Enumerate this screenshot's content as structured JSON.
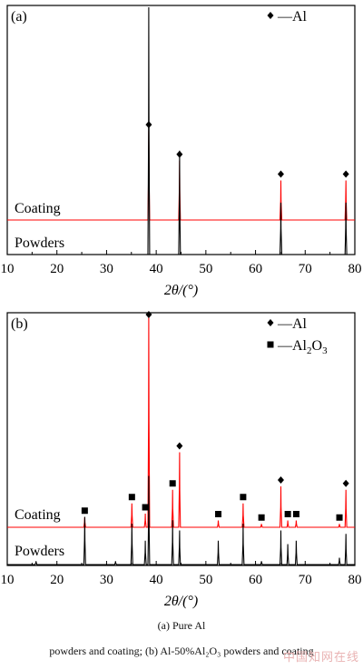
{
  "figure": {
    "caption_line1": "(a)  Pure  Al",
    "caption_line2": "powders and coating; (b) Al-50%Al₂O₃ powders and coating",
    "watermark": "中国知网在线"
  },
  "chart_data": [
    {
      "type": "line",
      "panel_label": "(a)",
      "xlabel": "2θ/(°)",
      "xlim": [
        10,
        80
      ],
      "x_ticks": [
        10,
        20,
        30,
        40,
        50,
        60,
        70,
        80
      ],
      "ylabel": "",
      "grid": false,
      "legend": [
        {
          "marker": "diamond",
          "text": "—Al"
        }
      ],
      "legend_position": "top-right",
      "series": [
        {
          "name": "Coating",
          "color": "#ff0000",
          "peaks": [
            {
              "x": 38.5,
              "height": 0.36
            },
            {
              "x": 44.7,
              "height": 0.24
            },
            {
              "x": 65.1,
              "height": 0.16
            },
            {
              "x": 78.2,
              "height": 0.16
            }
          ]
        },
        {
          "name": "Powders",
          "color": "#000000",
          "peaks": [
            {
              "x": 38.5,
              "height": 1.0
            },
            {
              "x": 44.7,
              "height": 0.42
            },
            {
              "x": 65.1,
              "height": 0.21
            },
            {
              "x": 78.2,
              "height": 0.21
            }
          ]
        }
      ],
      "markers": [
        {
          "x": 38.5,
          "symbol": "diamond",
          "phase": "Al"
        },
        {
          "x": 44.7,
          "symbol": "diamond",
          "phase": "Al"
        },
        {
          "x": 65.1,
          "symbol": "diamond",
          "phase": "Al"
        },
        {
          "x": 78.2,
          "symbol": "diamond",
          "phase": "Al"
        }
      ]
    },
    {
      "type": "line",
      "panel_label": "(b)",
      "xlabel": "2θ/(°)",
      "xlim": [
        10,
        80
      ],
      "x_ticks": [
        10,
        20,
        30,
        40,
        50,
        60,
        70,
        80
      ],
      "ylabel": "",
      "grid": false,
      "legend": [
        {
          "marker": "diamond",
          "text": "—Al"
        },
        {
          "marker": "square",
          "text": "—Al",
          "sub": "2",
          "text2": "O",
          "sub2": "3"
        }
      ],
      "legend_position": "top-right",
      "series": [
        {
          "name": "Coating",
          "color": "#ff0000",
          "peaks": [
            {
              "x": 25.6,
              "height": 0.03
            },
            {
              "x": 35.1,
              "height": 0.07
            },
            {
              "x": 37.8,
              "height": 0.04
            },
            {
              "x": 38.5,
              "height": 0.62
            },
            {
              "x": 43.3,
              "height": 0.11
            },
            {
              "x": 44.7,
              "height": 0.22
            },
            {
              "x": 52.5,
              "height": 0.02
            },
            {
              "x": 57.5,
              "height": 0.07
            },
            {
              "x": 61.2,
              "height": 0.01
            },
            {
              "x": 65.1,
              "height": 0.12
            },
            {
              "x": 66.5,
              "height": 0.02
            },
            {
              "x": 68.2,
              "height": 0.02
            },
            {
              "x": 76.9,
              "height": 0.01
            },
            {
              "x": 78.2,
              "height": 0.11
            }
          ]
        },
        {
          "name": "Powders",
          "color": "#000000",
          "peaks": [
            {
              "x": 15.8,
              "height": 0.01
            },
            {
              "x": 25.6,
              "height": 0.14
            },
            {
              "x": 31.8,
              "height": 0.01
            },
            {
              "x": 35.1,
              "height": 0.12
            },
            {
              "x": 37.8,
              "height": 0.07
            },
            {
              "x": 38.5,
              "height": 0.26
            },
            {
              "x": 43.3,
              "height": 0.13
            },
            {
              "x": 44.7,
              "height": 0.1
            },
            {
              "x": 52.5,
              "height": 0.07
            },
            {
              "x": 57.5,
              "height": 0.12
            },
            {
              "x": 61.2,
              "height": 0.01
            },
            {
              "x": 65.1,
              "height": 0.1
            },
            {
              "x": 66.5,
              "height": 0.06
            },
            {
              "x": 68.2,
              "height": 0.07
            },
            {
              "x": 76.9,
              "height": 0.02
            },
            {
              "x": 78.2,
              "height": 0.09
            }
          ]
        }
      ],
      "markers": [
        {
          "x": 25.6,
          "symbol": "square",
          "phase": "Al2O3"
        },
        {
          "x": 35.1,
          "symbol": "square",
          "phase": "Al2O3"
        },
        {
          "x": 37.8,
          "symbol": "square",
          "phase": "Al2O3"
        },
        {
          "x": 38.5,
          "symbol": "diamond",
          "phase": "Al"
        },
        {
          "x": 43.3,
          "symbol": "square",
          "phase": "Al2O3"
        },
        {
          "x": 44.7,
          "symbol": "diamond",
          "phase": "Al"
        },
        {
          "x": 52.5,
          "symbol": "square",
          "phase": "Al2O3"
        },
        {
          "x": 57.5,
          "symbol": "square",
          "phase": "Al2O3"
        },
        {
          "x": 61.2,
          "symbol": "square",
          "phase": "Al2O3"
        },
        {
          "x": 65.1,
          "symbol": "diamond",
          "phase": "Al"
        },
        {
          "x": 66.5,
          "symbol": "square",
          "phase": "Al2O3"
        },
        {
          "x": 68.2,
          "symbol": "square",
          "phase": "Al2O3"
        },
        {
          "x": 76.9,
          "symbol": "square",
          "phase": "Al2O3"
        },
        {
          "x": 78.2,
          "symbol": "diamond",
          "phase": "Al"
        }
      ]
    }
  ]
}
